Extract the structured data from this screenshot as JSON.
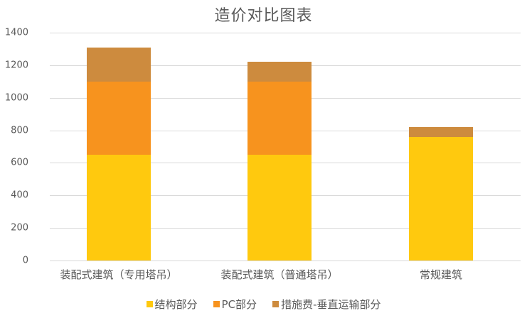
{
  "chart_data": {
    "type": "bar",
    "stacked": true,
    "title": "造价对比图表",
    "xlabel": "",
    "ylabel": "",
    "ylim": [
      0,
      1400
    ],
    "yticks": [
      0,
      200,
      400,
      600,
      800,
      1000,
      1200,
      1400
    ],
    "grid": true,
    "legend_position": "bottom",
    "categories": [
      "装配式建筑（专用塔吊）",
      "装配式建筑（普通塔吊）",
      "常规建筑"
    ],
    "series": [
      {
        "name": "结构部分",
        "color": "#FFC90E",
        "values": [
          650,
          650,
          760
        ]
      },
      {
        "name": "PC部分",
        "color": "#F7931E",
        "values": [
          450,
          450,
          0
        ]
      },
      {
        "name": "措施费-垂直运输部分",
        "color": "#CD8B3E",
        "values": [
          210,
          120,
          60
        ]
      }
    ]
  }
}
